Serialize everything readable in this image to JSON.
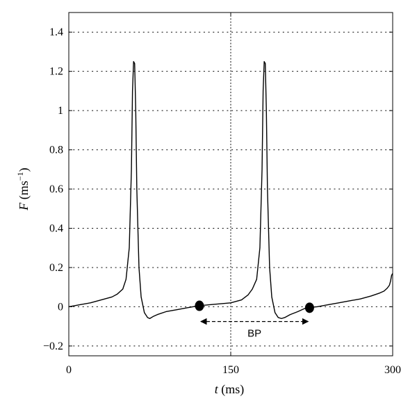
{
  "chart_data": {
    "type": "line",
    "xlabel": {
      "symbol": "t",
      "unit": " (ms)"
    },
    "ylabel": {
      "symbol": "F",
      "unit_pre": " (ms",
      "unit_sup": "−1",
      "unit_post": ")"
    },
    "xlim": [
      0,
      300
    ],
    "ylim": [
      -0.25,
      1.5
    ],
    "x_ticks": [
      0,
      150,
      300
    ],
    "x_tick_labels": [
      "0",
      "150",
      "300"
    ],
    "y_ticks": [
      -0.2,
      0,
      0.2,
      0.4,
      0.6,
      0.8,
      1,
      1.2,
      1.4
    ],
    "y_tick_labels": [
      "−0.2",
      "0",
      "0.2",
      "0.4",
      "0.6",
      "0.8",
      "1",
      "1.2",
      "1.4"
    ],
    "grid": true,
    "vertical_reference_x": 150,
    "series": [
      {
        "color": "#000000",
        "x": [
          0,
          10,
          20,
          30,
          40,
          45,
          50,
          53,
          56,
          58,
          59,
          60,
          61,
          62,
          63,
          65,
          67,
          70,
          73,
          75,
          78,
          82,
          90,
          100,
          110,
          120,
          130,
          140,
          150,
          160,
          166,
          170,
          174,
          177,
          179,
          180,
          181,
          182,
          183,
          184,
          186,
          188,
          191,
          194,
          197,
          200,
          205,
          212,
          220,
          230,
          240,
          250,
          260,
          270,
          280,
          288,
          292,
          295,
          297,
          298,
          299,
          300
        ],
        "y": [
          0.0,
          0.01,
          0.02,
          0.035,
          0.05,
          0.065,
          0.09,
          0.14,
          0.3,
          0.7,
          1.1,
          1.25,
          1.24,
          1.0,
          0.6,
          0.2,
          0.05,
          -0.03,
          -0.055,
          -0.06,
          -0.05,
          -0.04,
          -0.025,
          -0.015,
          -0.005,
          0.005,
          0.01,
          0.015,
          0.02,
          0.035,
          0.06,
          0.09,
          0.14,
          0.3,
          0.7,
          1.1,
          1.25,
          1.24,
          1.0,
          0.6,
          0.2,
          0.05,
          -0.03,
          -0.055,
          -0.06,
          -0.055,
          -0.04,
          -0.025,
          -0.005,
          0.0,
          0.01,
          0.02,
          0.03,
          0.04,
          0.055,
          0.07,
          0.08,
          0.095,
          0.11,
          0.13,
          0.16,
          0.17
        ]
      }
    ],
    "markers": [
      {
        "x": 121,
        "y": 0.005
      },
      {
        "x": 223,
        "y": -0.005
      }
    ],
    "annotations": [
      {
        "label": "BP",
        "x_start": 121,
        "x_end": 223,
        "y_arrow": -0.075,
        "y_label": -0.135,
        "style": "dashed-double-arrow"
      }
    ]
  }
}
